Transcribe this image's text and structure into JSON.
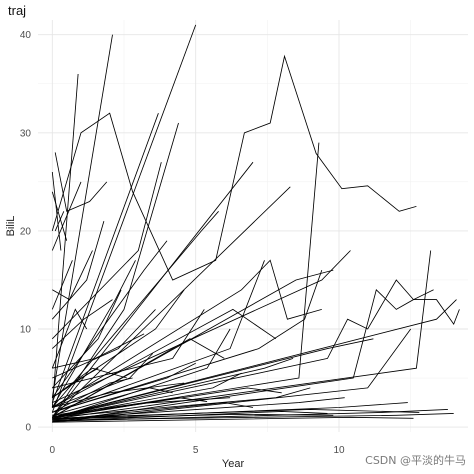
{
  "chart_data": {
    "type": "line",
    "title": "traj",
    "xlabel": "Year",
    "ylabel": "BiliL",
    "xlim": [
      -0.5,
      14.5
    ],
    "ylim": [
      -0.5,
      41.5
    ],
    "x_ticks": [
      0,
      5,
      10
    ],
    "y_ticks": [
      0,
      10,
      20,
      30,
      40
    ],
    "grid": true,
    "legend": "none",
    "line_color": "#000000",
    "series": [
      {
        "x": [
          0,
          1.0,
          2.0,
          2.8,
          4.2,
          5.7,
          6.7,
          7.6,
          8.1,
          9.2,
          10.1,
          11.0,
          12.1,
          12.7
        ],
        "y": [
          20,
          30,
          32,
          24,
          15,
          17,
          30,
          31,
          37.8,
          27.9,
          24.3,
          24.6,
          22,
          22.5
        ]
      },
      {
        "x": [
          0,
          5.0
        ],
        "y": [
          1.5,
          41
        ]
      },
      {
        "x": [
          0,
          2.1
        ],
        "y": [
          3,
          40
        ]
      },
      {
        "x": [
          0,
          0.9
        ],
        "y": [
          2,
          36
        ]
      },
      {
        "x": [
          0,
          3.7
        ],
        "y": [
          2.5,
          32
        ]
      },
      {
        "x": [
          0,
          7.0
        ],
        "y": [
          1,
          27
        ]
      },
      {
        "x": [
          0,
          2.5,
          4.4
        ],
        "y": [
          1,
          12,
          31
        ]
      },
      {
        "x": [
          0,
          3.0,
          3.8
        ],
        "y": [
          9,
          18,
          27
        ]
      },
      {
        "x": [
          0.1,
          0.5,
          1.3,
          1.9
        ],
        "y": [
          28,
          22,
          23,
          25
        ]
      },
      {
        "x": [
          0.1,
          0.4
        ],
        "y": [
          20,
          22
        ]
      },
      {
        "x": [
          0,
          6.6,
          7.6,
          8.2,
          9.4
        ],
        "y": [
          2,
          14,
          17,
          11,
          12
        ]
      },
      {
        "x": [
          0,
          8.5,
          9.8
        ],
        "y": [
          1,
          15,
          16
        ]
      },
      {
        "x": [
          0,
          7.2,
          8.8,
          9.4
        ],
        "y": [
          1.5,
          8,
          11,
          16
        ]
      },
      {
        "x": [
          0,
          9.4,
          10.4
        ],
        "y": [
          2.5,
          15,
          18
        ]
      },
      {
        "x": [
          0,
          9.6,
          10.3,
          11.0,
          12.0,
          12.6,
          13.3
        ],
        "y": [
          1,
          7,
          11,
          10,
          15,
          13,
          14
        ]
      },
      {
        "x": [
          0,
          10.5,
          11.3,
          12.0,
          12.6,
          13.4,
          14.0,
          14.2
        ],
        "y": [
          0.5,
          5,
          14,
          12,
          13,
          13,
          10.5,
          12
        ]
      },
      {
        "x": [
          0,
          9.6,
          11.2
        ],
        "y": [
          1,
          8,
          9
        ]
      },
      {
        "x": [
          0,
          11.0,
          12.5
        ],
        "y": [
          0.5,
          4,
          10
        ]
      },
      {
        "x": [
          0,
          12.7,
          13.2
        ],
        "y": [
          0.8,
          6,
          18
        ]
      },
      {
        "x": [
          0,
          13.4,
          14.1
        ],
        "y": [
          1,
          11,
          13
        ]
      },
      {
        "x": [
          0,
          8.6,
          9.3
        ],
        "y": [
          1,
          5,
          29
        ]
      },
      {
        "x": [
          0,
          8.3
        ],
        "y": [
          1,
          24.5
        ]
      },
      {
        "x": [
          0,
          6.3,
          7.8
        ],
        "y": [
          2,
          12,
          9
        ]
      },
      {
        "x": [
          0,
          6.2,
          7.4
        ],
        "y": [
          1.5,
          8,
          17
        ]
      },
      {
        "x": [
          0,
          4.2,
          5.3
        ],
        "y": [
          4,
          7,
          12
        ]
      },
      {
        "x": [
          0,
          3.6,
          4.6
        ],
        "y": [
          3,
          10,
          14
        ]
      },
      {
        "x": [
          0,
          2.3,
          3.6
        ],
        "y": [
          5,
          8,
          12
        ]
      },
      {
        "x": [
          0,
          1.2,
          1.8
        ],
        "y": [
          11,
          15,
          21
        ]
      },
      {
        "x": [
          0,
          1.0
        ],
        "y": [
          18,
          25
        ]
      },
      {
        "x": [
          0,
          0.7
        ],
        "y": [
          12,
          17
        ]
      },
      {
        "x": [
          0,
          1.6,
          2.4
        ],
        "y": [
          4,
          9,
          14
        ]
      },
      {
        "x": [
          0,
          2.7,
          3.5
        ],
        "y": [
          2,
          5,
          7.5
        ]
      },
      {
        "x": [
          0,
          4.0,
          5.0
        ],
        "y": [
          1.5,
          5,
          6.5
        ]
      },
      {
        "x": [
          0,
          5.6,
          6.6
        ],
        "y": [
          1,
          4,
          5.5
        ]
      },
      {
        "x": [
          0,
          6.8,
          8.0
        ],
        "y": [
          1,
          4,
          3.5
        ]
      },
      {
        "x": [
          0,
          7.8,
          9.0
        ],
        "y": [
          1,
          3,
          4
        ]
      },
      {
        "x": [
          0,
          8.6,
          10.2
        ],
        "y": [
          0.8,
          2.5,
          3
        ]
      },
      {
        "x": [
          0,
          10.0,
          12.4
        ],
        "y": [
          0.8,
          2,
          2.5
        ]
      },
      {
        "x": [
          0,
          11.5,
          13.8
        ],
        "y": [
          0.6,
          1.5,
          1.8
        ]
      },
      {
        "x": [
          0,
          12.0,
          14.0
        ],
        "y": [
          0.7,
          1.2,
          1.4
        ]
      },
      {
        "x": [
          0,
          9.0,
          12.8
        ],
        "y": [
          0.9,
          1.8,
          1.5
        ]
      },
      {
        "x": [
          0,
          3.0,
          6.2
        ],
        "y": [
          1.2,
          2.4,
          3.0
        ]
      },
      {
        "x": [
          0,
          2.0,
          4.6
        ],
        "y": [
          2,
          3.5,
          4.5
        ]
      },
      {
        "x": [
          0,
          1.5,
          3.2
        ],
        "y": [
          6,
          7,
          9.5
        ]
      },
      {
        "x": [
          0,
          1.1,
          2.1
        ],
        "y": [
          8,
          11,
          13
        ]
      },
      {
        "x": [
          0,
          0.6,
          1.4
        ],
        "y": [
          14,
          13,
          18
        ]
      },
      {
        "x": [
          0,
          0.5
        ],
        "y": [
          24,
          19
        ]
      },
      {
        "x": [
          0,
          0.3
        ],
        "y": [
          26,
          18
        ]
      },
      {
        "x": [
          0,
          4.8,
          6.0
        ],
        "y": [
          1,
          9,
          7
        ]
      },
      {
        "x": [
          0,
          5.4,
          6.2
        ],
        "y": [
          0.8,
          6,
          10
        ]
      },
      {
        "x": [
          0,
          3.2,
          4.0
        ],
        "y": [
          3,
          16,
          19
        ]
      },
      {
        "x": [
          0,
          2.2,
          2.9
        ],
        "y": [
          2,
          13,
          17
        ]
      },
      {
        "x": [
          0,
          0.8,
          1.2
        ],
        "y": [
          6,
          12,
          10
        ]
      },
      {
        "x": [
          0,
          1.4,
          2.6
        ],
        "y": [
          3,
          6,
          5
        ]
      },
      {
        "x": [
          0,
          7.4,
          8.4
        ],
        "y": [
          1,
          6,
          7
        ]
      },
      {
        "x": [
          0,
          5.2,
          5.8
        ],
        "y": [
          2,
          20,
          22
        ]
      },
      {
        "x": [
          0,
          6.0,
          7.0
        ],
        "y": [
          0.7,
          2.5,
          2
        ]
      },
      {
        "x": [
          0,
          4.4,
          5.4
        ],
        "y": [
          0.9,
          3,
          2.6
        ]
      },
      {
        "x": [
          0,
          3.4,
          4.2
        ],
        "y": [
          1.2,
          4,
          3.5
        ]
      },
      {
        "x": [
          0,
          2.0,
          2.8
        ],
        "y": [
          1.5,
          4.5,
          5
        ]
      },
      {
        "x": [
          0,
          1.0,
          1.6
        ],
        "y": [
          3,
          5,
          6
        ]
      },
      {
        "x": [
          0,
          8.0,
          9.6
        ],
        "y": [
          0.6,
          1.6,
          1.4
        ]
      },
      {
        "x": [
          0,
          10.4,
          12.6
        ],
        "y": [
          0.5,
          1,
          0.9
        ]
      },
      {
        "x": [
          0,
          6.4,
          9.8
        ],
        "y": [
          0.8,
          1.3,
          1.2
        ]
      }
    ]
  }
}
